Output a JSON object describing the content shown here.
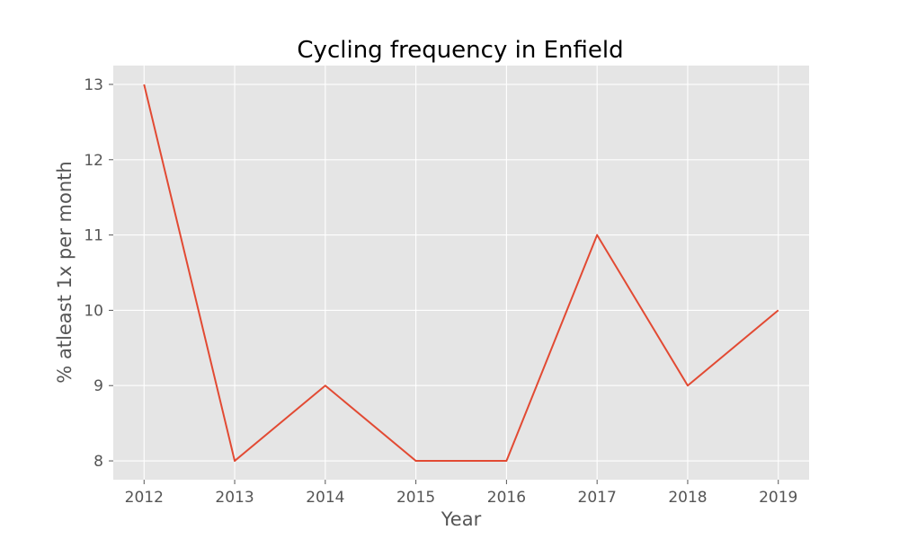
{
  "chart_data": {
    "type": "line",
    "title": "Cycling frequency in Enfield",
    "xlabel": "Year",
    "ylabel": "% atleast 1x per month",
    "x": [
      2012,
      2013,
      2014,
      2015,
      2016,
      2017,
      2018,
      2019
    ],
    "xticks": [
      "2012",
      "2013",
      "2014",
      "2015",
      "2016",
      "2017",
      "2018",
      "2019"
    ],
    "yticks": [
      "8",
      "9",
      "10",
      "11",
      "12",
      "13"
    ],
    "series": [
      {
        "values": [
          13,
          8,
          9,
          8,
          8,
          11,
          9,
          10
        ]
      }
    ],
    "xlim": [
      2011.66,
      2019.34
    ],
    "ylim": [
      7.75,
      13.25
    ],
    "grid": true,
    "colors": {
      "plot_background": "#e5e5e5",
      "grid": "#ffffff",
      "line": "#e24a33",
      "text": "#555555"
    }
  }
}
